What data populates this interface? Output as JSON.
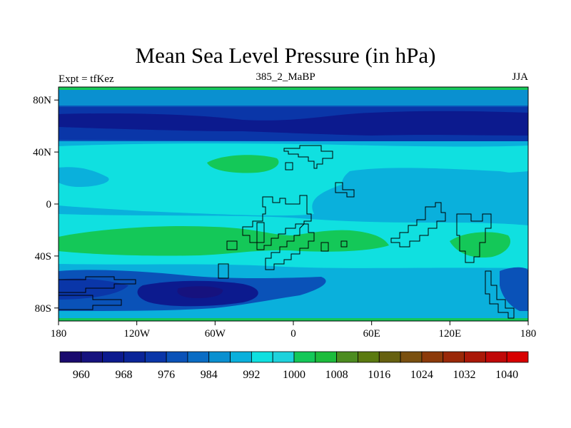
{
  "title": "Mean Sea Level Pressure (in hPa)",
  "subtitle_left": "Expt = tfKez",
  "subtitle_center": "385_2_MaBP",
  "subtitle_right": "JJA",
  "y_ticks": [
    "80N",
    "40N",
    "0",
    "40S",
    "80S"
  ],
  "x_ticks": [
    "180",
    "120W",
    "60W",
    "0",
    "60E",
    "120E",
    "180"
  ],
  "colorbar": {
    "colors": [
      "#1a0a6e",
      "#16127e",
      "#0c1a8e",
      "#0a2498",
      "#0a36a8",
      "#0a52b8",
      "#0a6cc4",
      "#0a90d0",
      "#0ab0dc",
      "#10e0e0",
      "#1ed2dc",
      "#14c858",
      "#1cbc3c",
      "#4c8c20",
      "#5a7a10",
      "#666010",
      "#7a5010",
      "#8c3a0a",
      "#9a2808",
      "#aa1808",
      "#c00808",
      "#d80000"
    ],
    "labels": [
      "960",
      "968",
      "976",
      "984",
      "992",
      "1000",
      "1008",
      "1016",
      "1024",
      "1032",
      "1040"
    ]
  },
  "map_colors": {
    "bg": "#0a52b8",
    "dark": "#0c1a8e",
    "darker": "#0a36a8",
    "mid": "#0a6cc4",
    "light": "#0ab0dc",
    "cyan": "#10e0e0",
    "green": "#14c858"
  }
}
